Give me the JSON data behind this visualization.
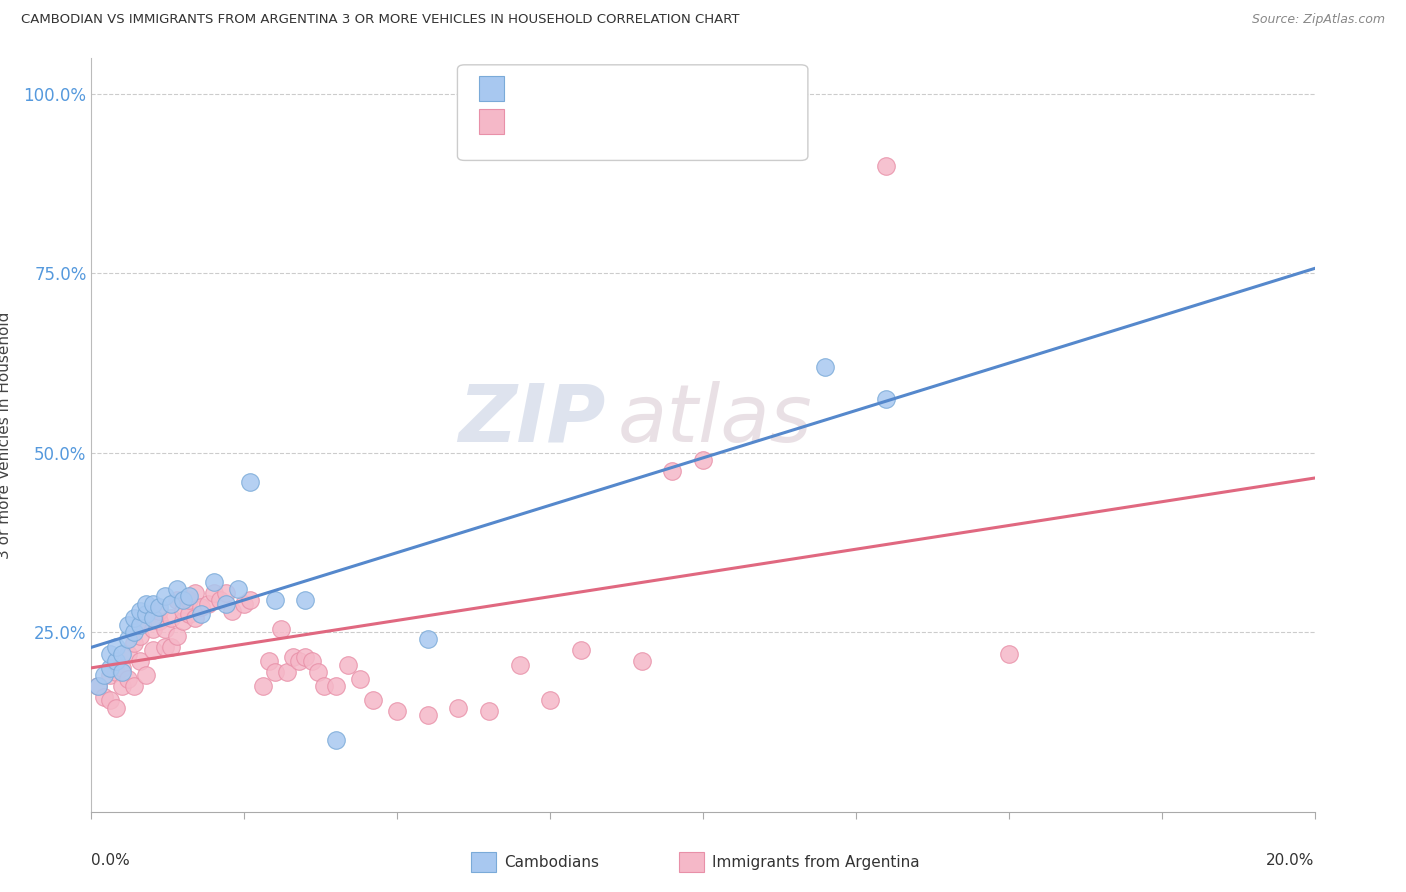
{
  "title": "CAMBODIAN VS IMMIGRANTS FROM ARGENTINA 3 OR MORE VEHICLES IN HOUSEHOLD CORRELATION CHART",
  "source": "Source: ZipAtlas.com",
  "ylabel": "3 or more Vehicles in Household",
  "blue_color": "#A8C8F0",
  "pink_color": "#F5B8C8",
  "blue_edge_color": "#7AAAD8",
  "pink_edge_color": "#E890A8",
  "blue_line_color": "#5588CC",
  "pink_line_color": "#E06880",
  "legend_label_blue": "Cambodians",
  "legend_label_pink": "Immigrants from Argentina",
  "watermark_zip": "ZIP",
  "watermark_atlas": "atlas",
  "xmin": 0.0,
  "xmax": 0.2,
  "ymin": 0.0,
  "ymax": 1.05,
  "ytick_values": [
    0.25,
    0.5,
    0.75,
    1.0
  ],
  "ytick_labels": [
    "25.0%",
    "50.0%",
    "75.0%",
    "100.0%"
  ],
  "blue_scatter_x": [
    0.001,
    0.002,
    0.003,
    0.003,
    0.004,
    0.004,
    0.005,
    0.005,
    0.006,
    0.006,
    0.007,
    0.007,
    0.008,
    0.008,
    0.009,
    0.009,
    0.01,
    0.01,
    0.011,
    0.012,
    0.013,
    0.014,
    0.015,
    0.016,
    0.018,
    0.02,
    0.022,
    0.024,
    0.026,
    0.03,
    0.035,
    0.04,
    0.055,
    0.12,
    0.13
  ],
  "blue_scatter_y": [
    0.175,
    0.19,
    0.2,
    0.22,
    0.21,
    0.23,
    0.195,
    0.22,
    0.24,
    0.26,
    0.25,
    0.27,
    0.26,
    0.28,
    0.275,
    0.29,
    0.27,
    0.29,
    0.285,
    0.3,
    0.29,
    0.31,
    0.295,
    0.3,
    0.275,
    0.32,
    0.29,
    0.31,
    0.46,
    0.295,
    0.295,
    0.1,
    0.24,
    0.62,
    0.575
  ],
  "pink_scatter_x": [
    0.001,
    0.002,
    0.003,
    0.003,
    0.004,
    0.004,
    0.005,
    0.005,
    0.006,
    0.006,
    0.007,
    0.007,
    0.008,
    0.008,
    0.009,
    0.009,
    0.01,
    0.01,
    0.011,
    0.011,
    0.012,
    0.012,
    0.013,
    0.013,
    0.014,
    0.014,
    0.015,
    0.015,
    0.016,
    0.016,
    0.017,
    0.017,
    0.018,
    0.019,
    0.02,
    0.021,
    0.022,
    0.023,
    0.025,
    0.026,
    0.028,
    0.029,
    0.03,
    0.031,
    0.032,
    0.033,
    0.034,
    0.035,
    0.036,
    0.037,
    0.038,
    0.04,
    0.042,
    0.044,
    0.046,
    0.05,
    0.055,
    0.06,
    0.065,
    0.07,
    0.075,
    0.08,
    0.09,
    0.095,
    0.1,
    0.13,
    0.15
  ],
  "pink_scatter_y": [
    0.175,
    0.16,
    0.155,
    0.19,
    0.145,
    0.195,
    0.175,
    0.2,
    0.22,
    0.185,
    0.175,
    0.235,
    0.21,
    0.245,
    0.19,
    0.265,
    0.225,
    0.255,
    0.265,
    0.28,
    0.23,
    0.255,
    0.23,
    0.27,
    0.245,
    0.295,
    0.265,
    0.28,
    0.275,
    0.295,
    0.27,
    0.305,
    0.285,
    0.29,
    0.305,
    0.295,
    0.305,
    0.28,
    0.29,
    0.295,
    0.175,
    0.21,
    0.195,
    0.255,
    0.195,
    0.215,
    0.21,
    0.215,
    0.21,
    0.195,
    0.175,
    0.175,
    0.205,
    0.185,
    0.155,
    0.14,
    0.135,
    0.145,
    0.14,
    0.205,
    0.155,
    0.225,
    0.21,
    0.475,
    0.49,
    0.9,
    0.22
  ]
}
